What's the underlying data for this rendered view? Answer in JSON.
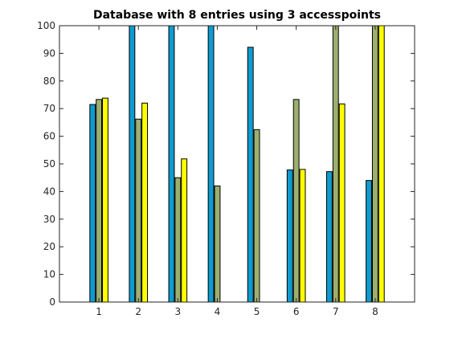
{
  "chart_data": {
    "type": "bar",
    "title": "Database with 8 entries using 3 accesspoints",
    "xlabel": "",
    "ylabel": "",
    "categories": [
      "1",
      "2",
      "3",
      "4",
      "5",
      "6",
      "7",
      "8"
    ],
    "xlim": [
      0,
      9
    ],
    "ylim": [
      0,
      100
    ],
    "yticks": [
      "0",
      "10",
      "20",
      "30",
      "40",
      "50",
      "60",
      "70",
      "80",
      "90",
      "100"
    ],
    "grid": false,
    "series": [
      {
        "color": "#0f9bcf",
        "values": [
          71.5,
          100,
          100,
          100,
          92.2,
          47.8,
          47.2,
          44
        ]
      },
      {
        "color": "#9caf6e",
        "values": [
          73.3,
          66.2,
          45,
          42,
          62.4,
          73.3,
          100,
          100
        ]
      },
      {
        "color": "#ffff00",
        "values": [
          73.8,
          72,
          51.8,
          null,
          null,
          48,
          71.7,
          100
        ]
      }
    ]
  }
}
